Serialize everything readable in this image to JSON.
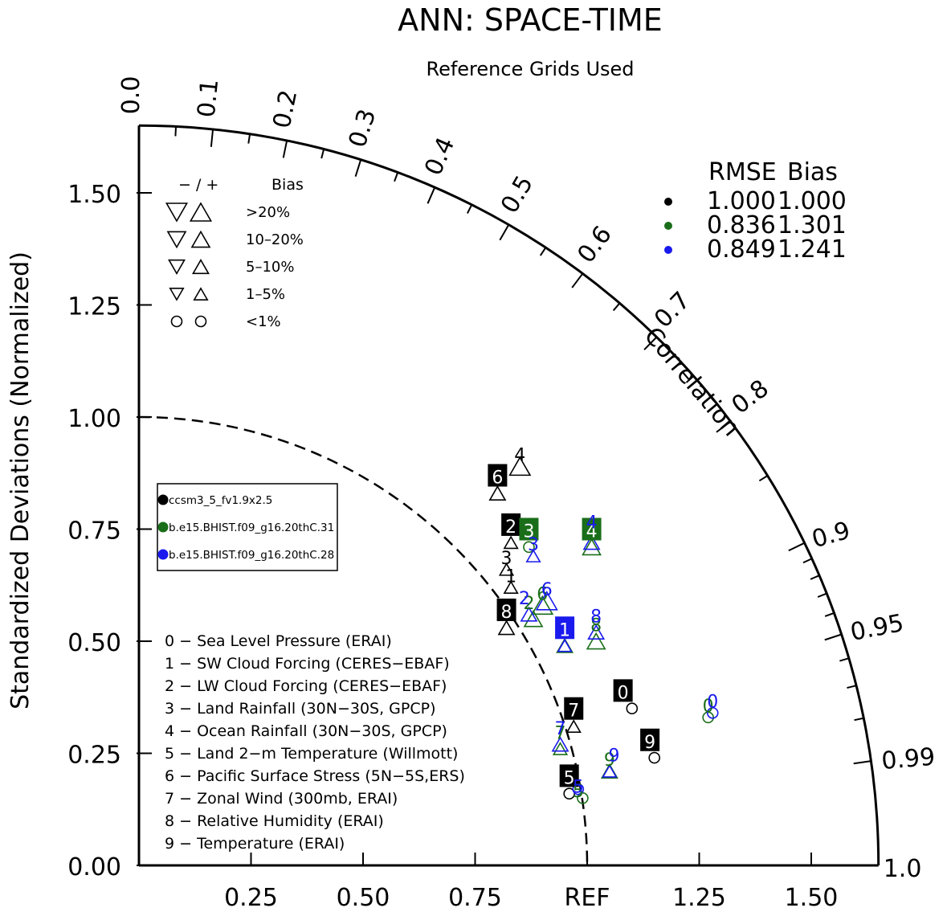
{
  "colors": {
    "case1": "#000000",
    "case2": "#1a6e1a",
    "case3": "#1a1aee"
  },
  "chart_data": {
    "type": "taylor",
    "title": "ANN: SPACE-TIME",
    "subtitle": "Reference Grids Used",
    "ylabel": "Standardized Deviations (Normalized)",
    "corr_axis_label": "Correlation",
    "ref_label": "REF",
    "x_ticks": [
      "0.25",
      "0.50",
      "0.75",
      "1.25",
      "1.50"
    ],
    "x_tick_values": [
      0.25,
      0.5,
      0.75,
      1.25,
      1.5
    ],
    "y_ticks": [
      "0.00",
      "0.25",
      "0.50",
      "0.75",
      "1.00",
      "1.25",
      "1.50"
    ],
    "y_tick_values": [
      0,
      0.25,
      0.5,
      0.75,
      1.0,
      1.25,
      1.5
    ],
    "sd_max": 1.65,
    "corr_labels": [
      {
        "v": 0.0,
        "t": "0.0"
      },
      {
        "v": 0.1,
        "t": "0.1"
      },
      {
        "v": 0.2,
        "t": "0.2"
      },
      {
        "v": 0.3,
        "t": "0.3"
      },
      {
        "v": 0.4,
        "t": "0.4"
      },
      {
        "v": 0.5,
        "t": "0.5"
      },
      {
        "v": 0.6,
        "t": "0.6"
      },
      {
        "v": 0.7,
        "t": "0.7"
      },
      {
        "v": 0.8,
        "t": "0.8"
      },
      {
        "v": 0.9,
        "t": "0.9"
      },
      {
        "v": 0.95,
        "t": "0.95"
      },
      {
        "v": 0.99,
        "t": "0.99"
      },
      {
        "v": 1.0,
        "t": "1.0"
      }
    ],
    "corr_minor_ticks": [
      0.05,
      0.15,
      0.25,
      0.35,
      0.45,
      0.55,
      0.65,
      0.75,
      0.85,
      0.91,
      0.92,
      0.93,
      0.94,
      0.96,
      0.97,
      0.98
    ],
    "bias_legend": {
      "header_sign": "−  /  +",
      "header_bias": "Bias",
      "rows": [
        {
          "label": ">20%",
          "size": 1.0,
          "shape": "tri"
        },
        {
          "label": "10–20%",
          "size": 0.8,
          "shape": "tri"
        },
        {
          "label": "5–10%",
          "size": 0.62,
          "shape": "tri"
        },
        {
          "label": "1–5%",
          "size": 0.45,
          "shape": "tri"
        },
        {
          "label": "<1%",
          "size": 0.55,
          "shape": "circle"
        }
      ]
    },
    "rmse_legend": {
      "header_rmse": "RMSE",
      "header_bias": "Bias",
      "rows": [
        {
          "rmse": "1.000",
          "bias": "1.000"
        },
        {
          "rmse": "0.836",
          "bias": "1.301"
        },
        {
          "rmse": "0.849",
          "bias": "1.241"
        }
      ]
    },
    "cases": [
      {
        "name": "ccsm3_5_fv1.9x2.5"
      },
      {
        "name": "b.e15.BHIST.f09_g16.20thC.31"
      },
      {
        "name": "b.e15.BHIST.f09_g16.20thC.28"
      }
    ],
    "variables": [
      "0 − Sea Level Pressure (ERAI)",
      "1 − SW Cloud Forcing (CERES−EBAF)",
      "2 − LW Cloud Forcing (CERES−EBAF)",
      "3 − Land Rainfall (30N−30S, GPCP)",
      "4 − Ocean Rainfall (30N−30S, GPCP)",
      "5 − Land 2−m Temperature (Willmott)",
      "6 − Pacific Surface Stress (5N−5S,ERS)",
      "7 − Zonal Wind (300mb, ERAI)",
      "8 − Relative Humidity (ERAI)",
      "9 − Temperature (ERAI)"
    ],
    "series": [
      {
        "name": "ccsm3_5_fv1.9x2.5",
        "points": [
          {
            "id": "0",
            "x": 1.1,
            "y": 0.35,
            "marker": "circle",
            "up": true,
            "size": 0.55
          },
          {
            "id": "1",
            "x": 0.83,
            "y": 0.62,
            "marker": "tri",
            "up": true,
            "size": 0.45
          },
          {
            "id": "2",
            "x": 0.83,
            "y": 0.72,
            "marker": "tri",
            "up": true,
            "size": 0.45
          },
          {
            "id": "3",
            "x": 0.82,
            "y": 0.66,
            "marker": "tri",
            "up": true,
            "size": 0.45
          },
          {
            "id": "4",
            "x": 0.85,
            "y": 0.89,
            "marker": "tri",
            "up": true,
            "size": 1.0
          },
          {
            "id": "5",
            "x": 0.96,
            "y": 0.16,
            "marker": "circle",
            "up": true,
            "size": 0.55
          },
          {
            "id": "6",
            "x": 0.8,
            "y": 0.83,
            "marker": "tri",
            "up": true,
            "size": 0.62
          },
          {
            "id": "7",
            "x": 0.97,
            "y": 0.31,
            "marker": "tri",
            "up": true,
            "size": 0.45
          },
          {
            "id": "8",
            "x": 0.82,
            "y": 0.53,
            "marker": "tri",
            "up": true,
            "size": 0.62
          },
          {
            "id": "9",
            "x": 1.15,
            "y": 0.24,
            "marker": "circle",
            "up": true,
            "size": 0.55
          }
        ]
      },
      {
        "name": "b.e15.BHIST.f09_g16.20thC.31",
        "points": [
          {
            "id": "1",
            "x": 0.95,
            "y": 0.49,
            "marker": "tri",
            "up": true,
            "size": 0.62
          },
          {
            "id": "2",
            "x": 0.88,
            "y": 0.55,
            "marker": "tri",
            "up": true,
            "size": 0.8
          },
          {
            "id": "3",
            "x": 0.87,
            "y": 0.71,
            "marker": "circle",
            "up": true,
            "size": 0.55
          },
          {
            "id": "4",
            "x": 1.01,
            "y": 0.71,
            "marker": "tri",
            "up": true,
            "size": 0.8
          },
          {
            "id": "5",
            "x": 0.99,
            "y": 0.15,
            "marker": "circle",
            "up": true,
            "size": 0.55
          },
          {
            "id": "6",
            "x": 0.9,
            "y": 0.58,
            "marker": "tri",
            "up": true,
            "size": 1.0
          },
          {
            "id": "7",
            "x": 0.94,
            "y": 0.26,
            "marker": "tri",
            "up": true,
            "size": 0.45
          },
          {
            "id": "8",
            "x": 1.02,
            "y": 0.5,
            "marker": "tri",
            "up": true,
            "size": 0.8
          },
          {
            "id": "9",
            "x": 1.05,
            "y": 0.21,
            "marker": "tri",
            "up": true,
            "size": 0.62
          },
          {
            "id": "0",
            "x": 1.27,
            "y": 0.33,
            "marker": "circle",
            "up": true,
            "size": 0.55
          }
        ]
      },
      {
        "name": "b.e15.BHIST.f09_g16.20thC.28",
        "points": [
          {
            "id": "1",
            "x": 0.95,
            "y": 0.49,
            "marker": "tri",
            "up": true,
            "size": 0.45
          },
          {
            "id": "2",
            "x": 0.87,
            "y": 0.56,
            "marker": "tri",
            "up": true,
            "size": 0.62
          },
          {
            "id": "3",
            "x": 0.88,
            "y": 0.69,
            "marker": "tri",
            "up": true,
            "size": 0.45
          },
          {
            "id": "4",
            "x": 1.01,
            "y": 0.72,
            "marker": "tri",
            "up": true,
            "size": 0.62
          },
          {
            "id": "5",
            "x": 0.98,
            "y": 0.17,
            "marker": "circle",
            "up": true,
            "size": 0.55
          },
          {
            "id": "6",
            "x": 0.91,
            "y": 0.59,
            "marker": "tri",
            "up": true,
            "size": 1.0
          },
          {
            "id": "7",
            "x": 0.94,
            "y": 0.27,
            "marker": "tri",
            "up": true,
            "size": 0.62
          },
          {
            "id": "8",
            "x": 1.02,
            "y": 0.52,
            "marker": "tri",
            "up": true,
            "size": 0.62
          },
          {
            "id": "9",
            "x": 1.05,
            "y": 0.21,
            "marker": "tri",
            "up": true,
            "size": 0.45
          },
          {
            "id": "0",
            "x": 1.28,
            "y": 0.34,
            "marker": "circle",
            "up": true,
            "size": 0.55
          }
        ]
      }
    ],
    "labels": [
      {
        "series": 0,
        "id": "0",
        "x": 1.08,
        "y": 0.39,
        "boxed": true
      },
      {
        "series": 0,
        "id": "1",
        "x": 0.83,
        "y": 0.65,
        "boxed": false
      },
      {
        "series": 0,
        "id": "2",
        "x": 0.83,
        "y": 0.76,
        "boxed": true
      },
      {
        "series": 0,
        "id": "3",
        "x": 0.82,
        "y": 0.69,
        "boxed": false
      },
      {
        "series": 0,
        "id": "4",
        "x": 0.85,
        "y": 0.92,
        "boxed": false
      },
      {
        "series": 0,
        "id": "5",
        "x": 0.96,
        "y": 0.2,
        "boxed": true
      },
      {
        "series": 0,
        "id": "6",
        "x": 0.8,
        "y": 0.87,
        "boxed": true
      },
      {
        "series": 0,
        "id": "7",
        "x": 0.97,
        "y": 0.35,
        "boxed": true
      },
      {
        "series": 0,
        "id": "8",
        "x": 0.82,
        "y": 0.57,
        "boxed": true
      },
      {
        "series": 0,
        "id": "9",
        "x": 1.14,
        "y": 0.28,
        "boxed": true
      },
      {
        "series": 1,
        "id": "1",
        "x": 0.95,
        "y": 0.53,
        "boxed": false
      },
      {
        "series": 1,
        "id": "2",
        "x": 0.87,
        "y": 0.59,
        "boxed": false
      },
      {
        "series": 1,
        "id": "3",
        "x": 0.87,
        "y": 0.75,
        "boxed": true
      },
      {
        "series": 1,
        "id": "4",
        "x": 1.01,
        "y": 0.75,
        "boxed": true
      },
      {
        "series": 1,
        "id": "5",
        "x": 0.98,
        "y": 0.17,
        "boxed": false
      },
      {
        "series": 1,
        "id": "6",
        "x": 0.9,
        "y": 0.61,
        "boxed": false
      },
      {
        "series": 1,
        "id": "7",
        "x": 0.94,
        "y": 0.3,
        "boxed": false
      },
      {
        "series": 1,
        "id": "8",
        "x": 1.02,
        "y": 0.54,
        "boxed": false
      },
      {
        "series": 1,
        "id": "9",
        "x": 1.05,
        "y": 0.24,
        "boxed": false
      },
      {
        "series": 1,
        "id": "0",
        "x": 1.27,
        "y": 0.36,
        "boxed": false
      },
      {
        "series": 2,
        "id": "1",
        "x": 0.95,
        "y": 0.53,
        "boxed": true
      },
      {
        "series": 2,
        "id": "2",
        "x": 0.86,
        "y": 0.6,
        "boxed": false
      },
      {
        "series": 2,
        "id": "3",
        "x": 0.88,
        "y": 0.72,
        "boxed": false
      },
      {
        "series": 2,
        "id": "4",
        "x": 1.01,
        "y": 0.77,
        "boxed": false
      },
      {
        "series": 2,
        "id": "5",
        "x": 0.98,
        "y": 0.18,
        "boxed": false
      },
      {
        "series": 2,
        "id": "6",
        "x": 0.91,
        "y": 0.62,
        "boxed": false
      },
      {
        "series": 2,
        "id": "7",
        "x": 0.94,
        "y": 0.31,
        "boxed": false
      },
      {
        "series": 2,
        "id": "8",
        "x": 1.02,
        "y": 0.56,
        "boxed": false
      },
      {
        "series": 2,
        "id": "9",
        "x": 1.06,
        "y": 0.25,
        "boxed": false
      },
      {
        "series": 2,
        "id": "0",
        "x": 1.28,
        "y": 0.37,
        "boxed": false
      }
    ]
  }
}
